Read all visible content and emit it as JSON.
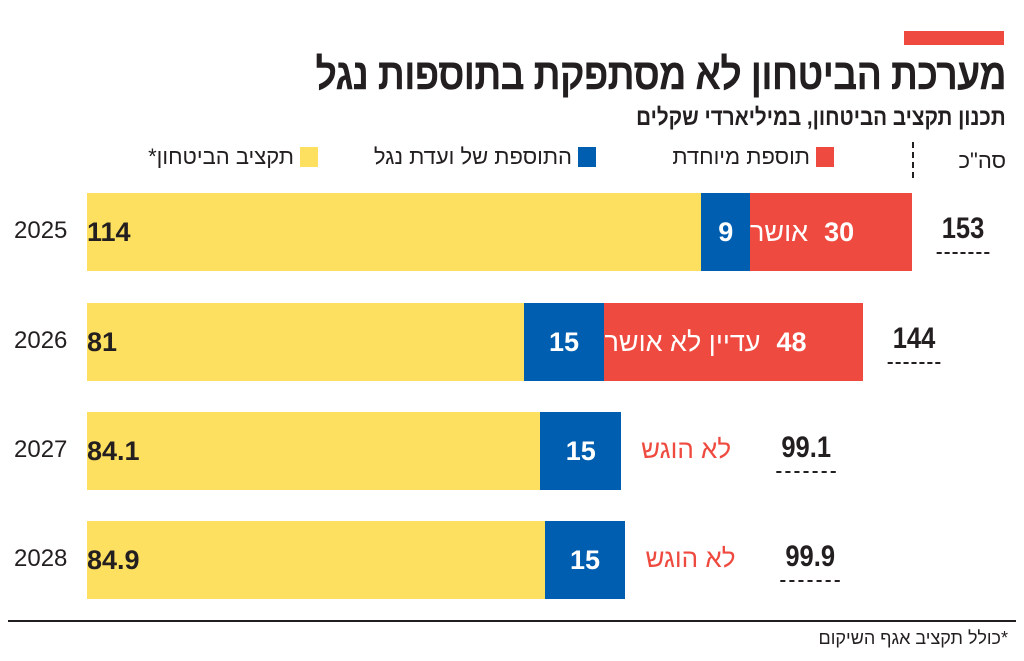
{
  "title": "מערכת הביטחון לא מסתפקת בתוספות נגל",
  "subtitle": "תכנון תקציב הביטחון, במיליארדי שקלים",
  "footnote": "*כולל תקציב אגף השיקום",
  "colors": {
    "budget": "#fde05f",
    "nagel": "#005eb0",
    "special": "#ef4a3f",
    "accent": "#ef4a3f"
  },
  "chart_data": {
    "type": "bar",
    "orientation": "horizontal",
    "stacked": true,
    "title": "מערכת הביטחון לא מסתפקת בתוספות נגל",
    "subtitle": "תכנון תקציב הביטחון, במיליארדי שקלים",
    "total_label": "סה\"כ",
    "legend_position": "top",
    "categories": [
      "2025",
      "2026",
      "2027",
      "2028"
    ],
    "series": [
      {
        "name": "תקציב הביטחון*",
        "values": [
          114,
          81,
          84.1,
          84.9
        ],
        "labels": [
          "114",
          "81",
          "84.1",
          "84.9"
        ]
      },
      {
        "name": "התוספת של ועדת נגל",
        "values": [
          9,
          15,
          15,
          15
        ],
        "labels": [
          "9",
          "15",
          "15",
          "15"
        ]
      },
      {
        "name": "תוספת מיוחדת",
        "values": [
          30,
          48,
          null,
          null
        ],
        "labels": [
          "30",
          "48",
          "",
          ""
        ],
        "notes": [
          "אושר",
          "עדיין לא אושר",
          "לא הוגש",
          "לא הוגש"
        ]
      }
    ],
    "totals": [
      "153",
      "144",
      "99.1",
      "99.9"
    ],
    "grid": false
  }
}
